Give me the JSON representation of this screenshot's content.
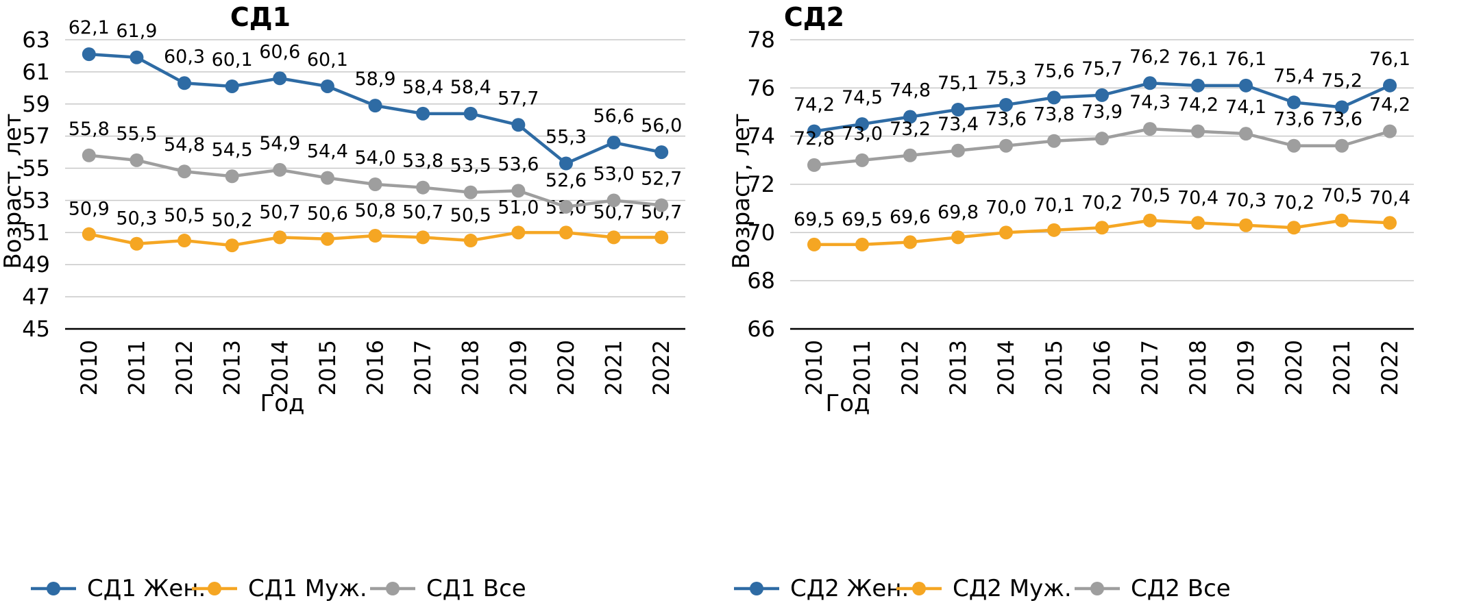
{
  "chart_data": [
    {
      "type": "line",
      "title": "СД1",
      "xlabel": "Год",
      "ylabel": "Возраст, лет",
      "ylim": [
        45,
        63
      ],
      "yticks": [
        "45",
        "47",
        "49",
        "51",
        "53",
        "55",
        "57",
        "59",
        "61",
        "63"
      ],
      "categories": [
        "2010",
        "2011",
        "2012",
        "2013",
        "2014",
        "2015",
        "2016",
        "2017",
        "2018",
        "2019",
        "2020",
        "2021",
        "2022"
      ],
      "grid": true,
      "legend": "bottom",
      "series": [
        {
          "name": "СД1 Жен.",
          "color": "#2e6ba4",
          "values": [
            62.1,
            61.9,
            60.3,
            60.1,
            60.6,
            60.1,
            58.9,
            58.4,
            58.4,
            57.7,
            55.3,
            56.6,
            56.0
          ],
          "labels": [
            "62,1",
            "61,9",
            "60,3",
            "60,1",
            "60,6",
            "60,1",
            "58,9",
            "58,4",
            "58,4",
            "57,7",
            "55,3",
            "56,6",
            "56,0"
          ]
        },
        {
          "name": "СД1 Муж.",
          "color": "#f5a623",
          "values": [
            50.9,
            50.3,
            50.5,
            50.2,
            50.7,
            50.6,
            50.8,
            50.7,
            50.5,
            51.0,
            51.0,
            50.7,
            50.7
          ],
          "labels": [
            "50,9",
            "50,3",
            "50,5",
            "50,2",
            "50,7",
            "50,6",
            "50,8",
            "50,7",
            "50,5",
            "51,0",
            "51,0",
            "50,7",
            "50,7"
          ]
        },
        {
          "name": "СД1 Все",
          "color": "#9e9e9e",
          "values": [
            55.8,
            55.5,
            54.8,
            54.5,
            54.9,
            54.4,
            54.0,
            53.8,
            53.5,
            53.6,
            52.6,
            53.0,
            52.7
          ],
          "labels": [
            "55,8",
            "55,5",
            "54,8",
            "54,5",
            "54,9",
            "54,4",
            "54,0",
            "53,8",
            "53,5",
            "53,6",
            "52,6",
            "53,0",
            "52,7"
          ]
        }
      ]
    },
    {
      "type": "line",
      "title": "СД2",
      "xlabel": "Год",
      "ylabel": "Возраст, лет",
      "ylim": [
        66,
        78
      ],
      "yticks": [
        "66",
        "68",
        "70",
        "72",
        "74",
        "76",
        "78"
      ],
      "categories": [
        "2010",
        "2011",
        "2012",
        "2013",
        "2014",
        "2015",
        "2016",
        "2017",
        "2018",
        "2019",
        "2020",
        "2021",
        "2022"
      ],
      "grid": true,
      "legend": "bottom",
      "series": [
        {
          "name": "СД2 Жен.",
          "color": "#2e6ba4",
          "values": [
            74.2,
            74.5,
            74.8,
            75.1,
            75.3,
            75.6,
            75.7,
            76.2,
            76.1,
            76.1,
            75.4,
            75.2,
            76.1
          ],
          "labels": [
            "74,2",
            "74,5",
            "74,8",
            "75,1",
            "75,3",
            "75,6",
            "75,7",
            "76,2",
            "76,1",
            "76,1",
            "75,4",
            "75,2",
            "76,1"
          ]
        },
        {
          "name": "СД2 Муж.",
          "color": "#f5a623",
          "values": [
            69.5,
            69.5,
            69.6,
            69.8,
            70.0,
            70.1,
            70.2,
            70.5,
            70.4,
            70.3,
            70.2,
            70.5,
            70.4
          ],
          "labels": [
            "69,5",
            "69,5",
            "69,6",
            "69,8",
            "70,0",
            "70,1",
            "70,2",
            "70,5",
            "70,4",
            "70,3",
            "70,2",
            "70,5",
            "70,4"
          ]
        },
        {
          "name": "СД2 Все",
          "color": "#9e9e9e",
          "values": [
            72.8,
            73.0,
            73.2,
            73.4,
            73.6,
            73.8,
            73.9,
            74.3,
            74.2,
            74.1,
            73.6,
            73.6,
            74.2
          ],
          "labels": [
            "72,8",
            "73,0",
            "73,2",
            "73,4",
            "73,6",
            "73,8",
            "73,9",
            "74,3",
            "74,2",
            "74,1",
            "73,6",
            "73,6",
            "74,2"
          ]
        }
      ]
    }
  ]
}
